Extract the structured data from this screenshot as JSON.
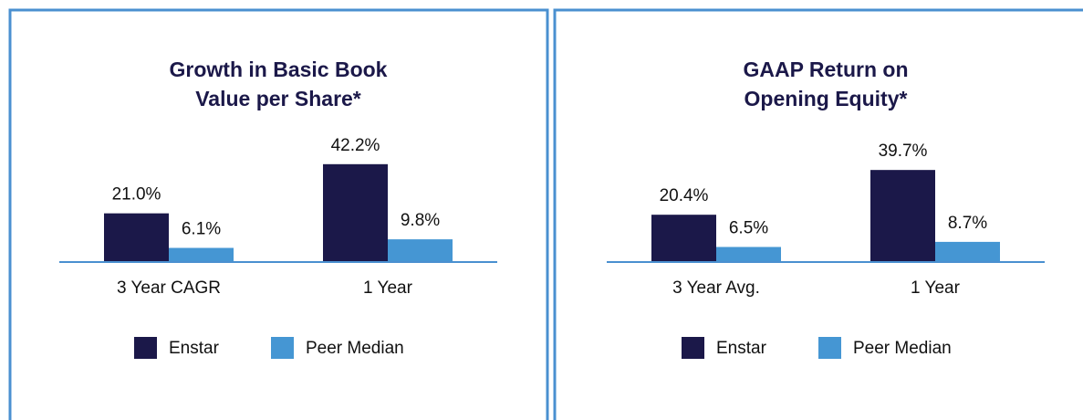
{
  "chart_data": [
    {
      "type": "bar",
      "title": [
        "Growth in Basic Book",
        "Value per Share*"
      ],
      "categories": [
        "3 Year CAGR",
        "1 Year"
      ],
      "series": [
        {
          "name": "Enstar",
          "color": "#1b1849",
          "values": [
            21.0,
            42.2
          ],
          "value_labels": [
            "21.0%",
            "42.2%"
          ]
        },
        {
          "name": "Peer Median",
          "color": "#4596d3",
          "values": [
            6.1,
            9.8
          ],
          "value_labels": [
            "6.1%",
            "9.8%"
          ]
        }
      ]
    },
    {
      "type": "bar",
      "title": [
        "GAAP Return on",
        "Opening Equity*"
      ],
      "categories": [
        "3 Year Avg.",
        "1 Year"
      ],
      "series": [
        {
          "name": "Enstar",
          "color": "#1b1849",
          "values": [
            20.4,
            39.7
          ],
          "value_labels": [
            "20.4%",
            "39.7%"
          ]
        },
        {
          "name": "Peer Median",
          "color": "#4596d3",
          "values": [
            6.5,
            8.7
          ],
          "value_labels": [
            "6.5%",
            "8.7%"
          ]
        }
      ]
    }
  ]
}
